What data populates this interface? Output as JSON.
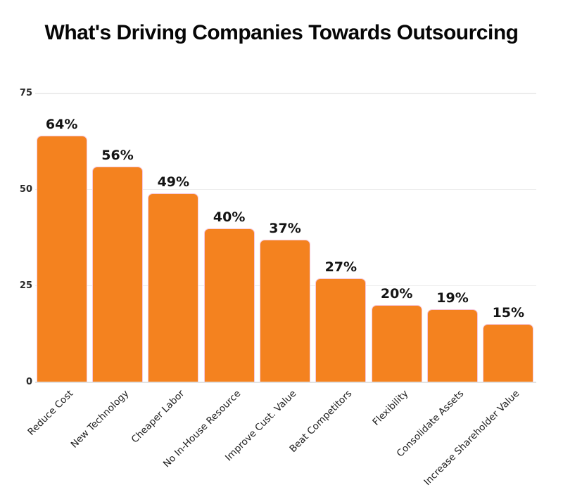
{
  "title": "What's Driving Companies Towards Outsourcing",
  "chart_data": {
    "type": "bar",
    "title": "What's Driving Companies Towards Outsourcing",
    "categories": [
      "Reduce Cost",
      "New Technology",
      "Cheaper Labor",
      "No In-House Resource",
      "Improve Cust. Value",
      "Beat Competitors",
      "Flexibility",
      "Consolidate Assets",
      "Increase Shareholder Value"
    ],
    "values": [
      64,
      56,
      49,
      40,
      37,
      27,
      20,
      19,
      15
    ],
    "value_labels": [
      "64%",
      "56%",
      "49%",
      "40%",
      "37%",
      "27%",
      "20%",
      "19%",
      "15%"
    ],
    "xlabel": "",
    "ylabel": "",
    "ylim": [
      0,
      75
    ],
    "yticks": [
      0,
      25,
      50,
      75
    ],
    "grid": true,
    "legend": false,
    "bar_color": "#F4821F",
    "bar_border_color": "#F6C8DC",
    "grid_color": "#ECECEC",
    "axis_line_color": "#E2E2E2",
    "value_label_color": "#141414",
    "tick_label_color": "#2A2A2A",
    "category_label_color": "#1C1C1C",
    "background_color": "#FFFFFF"
  }
}
